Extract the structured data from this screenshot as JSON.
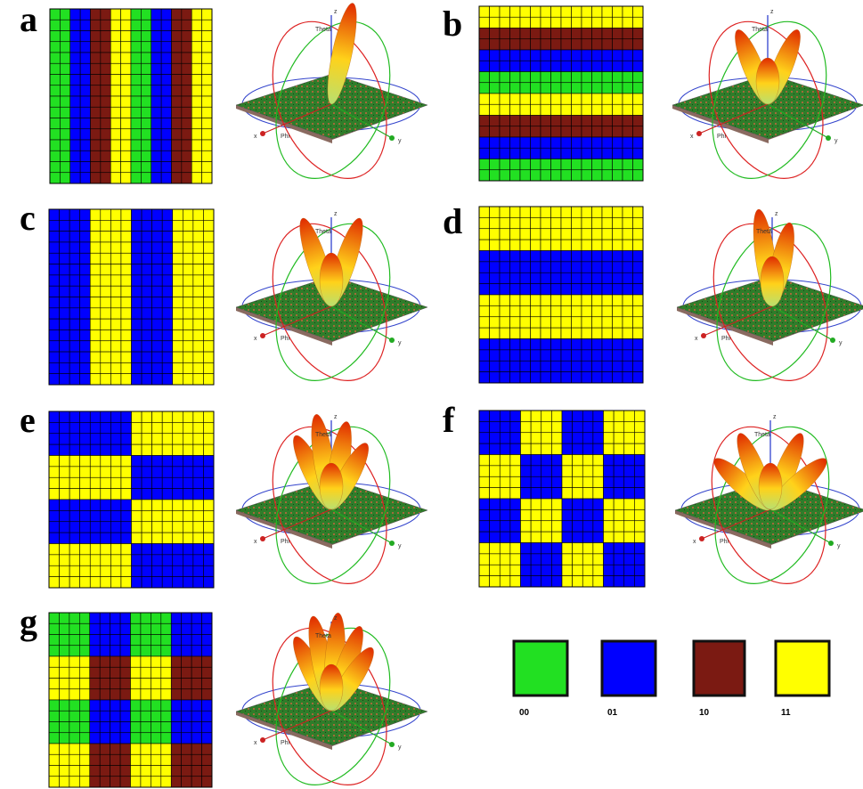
{
  "panels": [
    {
      "label": "a"
    },
    {
      "label": "b"
    },
    {
      "label": "c"
    },
    {
      "label": "d"
    },
    {
      "label": "e"
    },
    {
      "label": "f"
    },
    {
      "label": "g"
    }
  ],
  "axis_labels": {
    "z": "z",
    "theta": "Theta",
    "x": "x",
    "phi": "Phi",
    "y": "y"
  },
  "legend": [
    {
      "label": "00"
    },
    {
      "label": "01"
    },
    {
      "label": "10"
    },
    {
      "label": "11"
    }
  ]
}
